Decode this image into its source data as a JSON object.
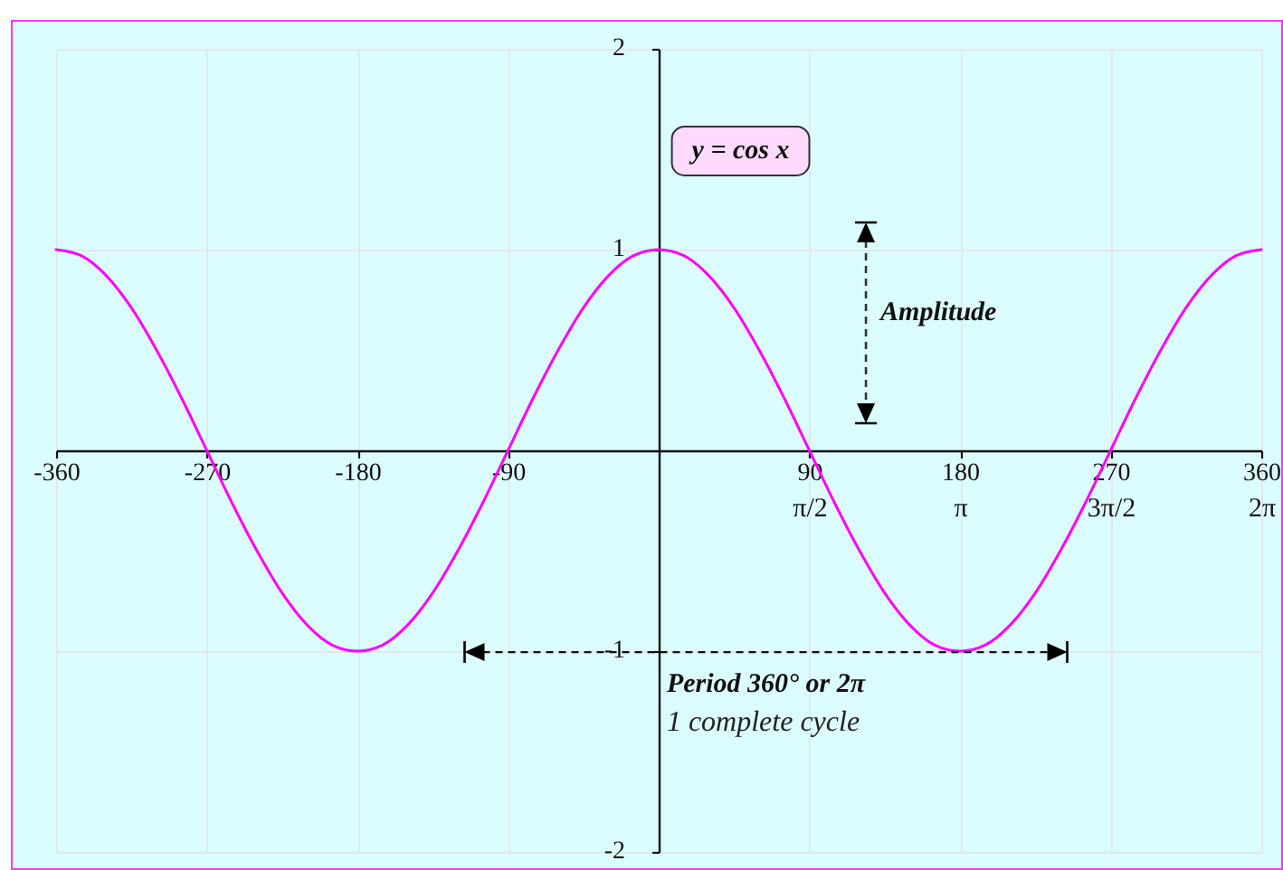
{
  "chart_data": {
    "type": "line",
    "annotations": [
      "y = cos x",
      "Amplitude",
      "Period 360° or 2π",
      "1 complete cycle"
    ],
    "x": [
      -360,
      -345,
      -330,
      -315,
      -300,
      -285,
      -270,
      -255,
      -240,
      -225,
      -210,
      -195,
      -180,
      -165,
      -150,
      -135,
      -120,
      -105,
      -90,
      -75,
      -60,
      -45,
      -30,
      -15,
      0,
      15,
      30,
      45,
      60,
      75,
      90,
      105,
      120,
      135,
      150,
      165,
      180,
      195,
      210,
      225,
      240,
      255,
      270,
      285,
      300,
      315,
      330,
      345,
      360
    ],
    "series": [
      {
        "color": "#ff00ff",
        "values": [
          1,
          0.97,
          0.87,
          0.71,
          0.5,
          0.26,
          0,
          -0.26,
          -0.5,
          -0.71,
          -0.87,
          -0.97,
          -1,
          -0.97,
          -0.87,
          -0.71,
          -0.5,
          -0.26,
          0,
          0.26,
          0.5,
          0.71,
          0.87,
          0.97,
          1,
          0.97,
          0.87,
          0.71,
          0.5,
          0.26,
          0,
          -0.26,
          -0.5,
          -0.71,
          -0.87,
          -0.97,
          -1,
          -0.97,
          -0.87,
          -0.71,
          -0.5,
          -0.26,
          0,
          0.26,
          0.5,
          0.71,
          0.87,
          0.97,
          1
        ]
      }
    ],
    "xlim": [
      -360,
      360
    ],
    "ylim": [
      -2,
      2
    ],
    "xticks": [
      -360,
      -270,
      -180,
      -90,
      90,
      180,
      270,
      360
    ],
    "x2lim": [
      -6.2832,
      6.2832
    ],
    "x2ticks": [
      {
        "value": 1.5708,
        "label": "π/2"
      },
      {
        "value": 3.1416,
        "label": "π"
      },
      {
        "value": 4.7124,
        "label": "3π/2"
      },
      {
        "value": 6.2832,
        "label": "2π"
      }
    ],
    "yticks": [
      -2,
      -1,
      1,
      2
    ],
    "grid": true,
    "line_style": "solid"
  }
}
